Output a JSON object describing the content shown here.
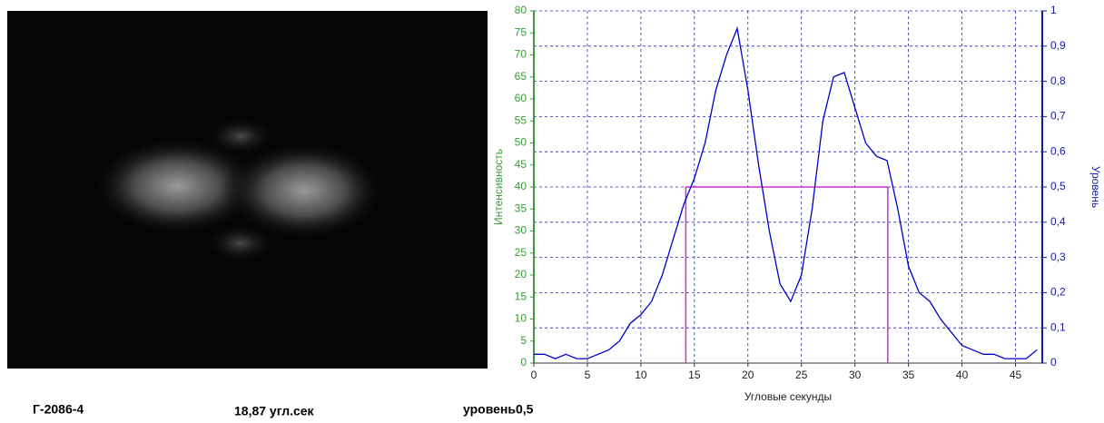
{
  "chart_data": {
    "type": "line",
    "ylabel": "Интенсивность",
    "y2label": "Уровень",
    "xlabel": "Угловые секунды",
    "xlim": [
      0,
      47.5
    ],
    "xticks": [
      0,
      5,
      10,
      15,
      20,
      25,
      30,
      35,
      40,
      45
    ],
    "ylim": [
      0,
      80
    ],
    "yticks": [
      0,
      5,
      10,
      15,
      20,
      25,
      30,
      35,
      40,
      45,
      50,
      55,
      60,
      65,
      70,
      75,
      80
    ],
    "y2lim": [
      0,
      1
    ],
    "y2ticks": [
      0,
      {
        "value": 0.1,
        "label": "0,1"
      },
      {
        "value": 0.2,
        "label": "0,2"
      },
      {
        "value": 0.3,
        "label": "0,3"
      },
      {
        "value": 0.4,
        "label": "0,4"
      },
      {
        "value": 0.5,
        "label": "0,5"
      },
      {
        "value": 0.6,
        "label": "0,6"
      },
      {
        "value": 0.7,
        "label": "0,7"
      },
      {
        "value": 0.8,
        "label": "0,8"
      },
      {
        "value": 0.9,
        "label": "0,9"
      },
      1
    ],
    "grid": true,
    "series": [
      {
        "color": "#0000cc",
        "x": [
          0,
          1,
          2,
          3,
          4,
          5,
          6,
          7,
          8,
          9,
          10,
          11,
          12,
          13,
          14,
          15,
          16,
          17,
          18,
          19,
          20,
          21,
          22,
          23,
          24,
          25,
          26,
          27,
          28,
          29,
          30,
          31,
          32,
          33,
          34,
          35,
          36,
          37,
          38,
          39,
          40,
          41,
          42,
          43,
          44,
          45,
          46,
          47
        ],
        "values": [
          2,
          2,
          1,
          2,
          1,
          1,
          2,
          3,
          5,
          9,
          11,
          14,
          20,
          28,
          36,
          42,
          50,
          62,
          70,
          76,
          62,
          45,
          30,
          18,
          14,
          20,
          35,
          55,
          65,
          66,
          58,
          50,
          47,
          46,
          35,
          22,
          16,
          14,
          10,
          7,
          4,
          3,
          2,
          2,
          1,
          1,
          1,
          3
        ]
      }
    ],
    "level_box": {
      "x": [
        14.2,
        33.07
      ],
      "level": 0.5,
      "axis": "y2",
      "color": "#cc33cc"
    }
  },
  "captions": {
    "sample": "Г-2086-4",
    "width": "18,87 угл.сек",
    "level": "уровень0,5"
  }
}
